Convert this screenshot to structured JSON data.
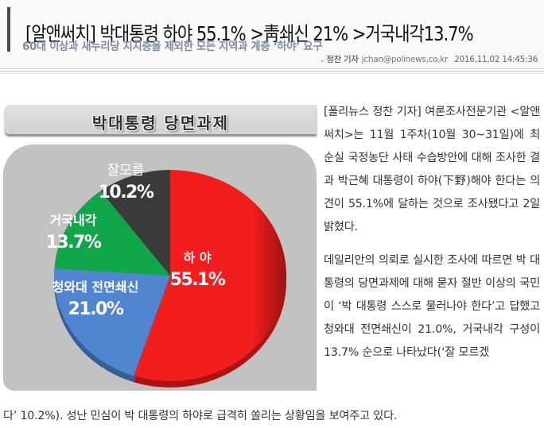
{
  "header": {
    "headline": "[알앤써치] 박대통령 하야 55.1% >靑쇄신 21% >거국내각13.7%",
    "subheadline": "60대 이상과 새누리당 지지층을 제외한 모든 지역과 계층 ‘하야’ 요구",
    "byline": {
      "icon": "chevron-down-icon",
      "reporter": "정찬 기자",
      "email": "jchan@polinews,co,kr",
      "timestamp": "2016,11,02 14:45:36"
    }
  },
  "chart_data": {
    "type": "pie",
    "title": "박대통령 당면과제",
    "categories": [
      "하 야",
      "청와대 전면쇄신",
      "거국내각",
      "잘모름"
    ],
    "values": [
      55.1,
      21.0,
      13.7,
      10.2
    ],
    "value_labels": [
      "55.1%",
      "21.0%",
      "13.7%",
      "10.2%"
    ],
    "colors": [
      "#f21d1d",
      "#4f86cf",
      "#12a64a",
      "#3a3a3a"
    ],
    "start_angle": "12 o'clock, clockwise",
    "legend": "none (inline labels)",
    "background": "#c2c2c2"
  },
  "article": {
    "paragraph1": "[폴리뉴스 정찬 기자] 여론조사전문기관 <알앤써치>는 11월 1주차(10월 30~31일)에 최순실 국정농단 사태 수습방안에 대해 조사한 결과 박근혜 대통령이 하야(下野)해야 한다는 의견이 55.1%에 달하는 것으로 조사됐다고 2일 밝혔다.",
    "paragraph2": "데일리안의 의뢰로 실시한 조사에 따르면 박 대통령의 당면과제에 대해 묻자 절반 이상의 국민이 ‘박 대통령 스스로 물러나야 한다’고 답했고 청와대 전면쇄신이 21.0%, 거국내각 구성이 13.7% 순으로 나타났다(‘잘 모르겠",
    "paragraph2_end": "다’ 10.2%). 성난 민심이 박 대통령의 하야로 급격히 쏠리는 상황임을 보여주고 있다."
  }
}
